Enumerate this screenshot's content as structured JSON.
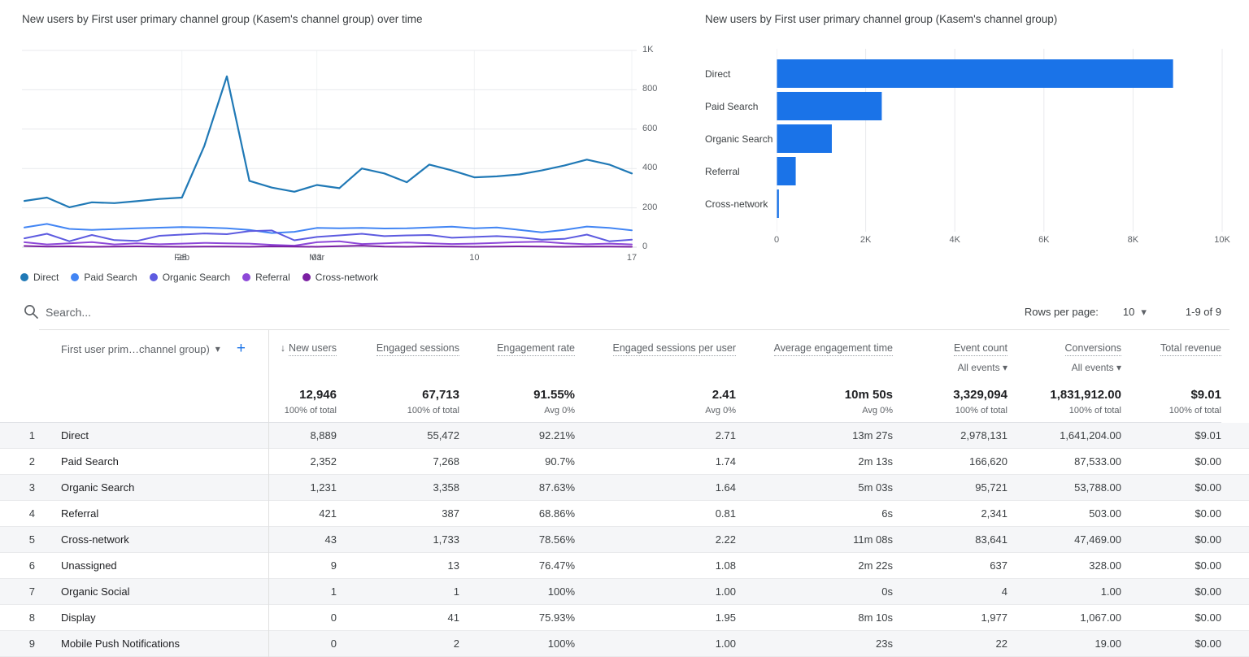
{
  "icons": {
    "search": "magnifier",
    "sort_arrow": "↓",
    "caret": "▾",
    "plus": "+"
  },
  "chart_data": [
    {
      "type": "line",
      "title": "New users by First user primary channel group (Kasem's channel group) over time",
      "ylim": [
        0,
        1000
      ],
      "n_points": 28,
      "grid": true,
      "legend_position": "bottom",
      "y_ticks": [
        {
          "label": "1K",
          "value": 1000
        },
        {
          "label": "800",
          "value": 800
        },
        {
          "label": "600",
          "value": 600
        },
        {
          "label": "400",
          "value": 400
        },
        {
          "label": "200",
          "value": 200
        },
        {
          "label": "0",
          "value": 0
        }
      ],
      "x_ticks": [
        {
          "label": "25",
          "sublabel": "Feb",
          "index": 7
        },
        {
          "label": "03",
          "sublabel": "Mar",
          "index": 13
        },
        {
          "label": "10",
          "sublabel": "",
          "index": 20
        },
        {
          "label": "17",
          "sublabel": "",
          "index": 27
        }
      ],
      "series": [
        {
          "name": "Direct",
          "color": "#2079b6",
          "values": [
            235,
            252,
            203,
            228,
            224,
            234,
            245,
            252,
            515,
            868,
            337,
            303,
            282,
            316,
            300,
            400,
            375,
            330,
            420,
            390,
            355,
            360,
            370,
            390,
            415,
            445,
            420,
            375
          ]
        },
        {
          "name": "Paid Search",
          "color": "#4285f4",
          "values": [
            100,
            118,
            93,
            88,
            92,
            96,
            99,
            102,
            100,
            96,
            88,
            72,
            78,
            98,
            96,
            98,
            95,
            96,
            100,
            104,
            96,
            100,
            88,
            75,
            88,
            105,
            98,
            86
          ]
        },
        {
          "name": "Organic Search",
          "color": "#5d5be0",
          "values": [
            45,
            68,
            30,
            62,
            36,
            32,
            58,
            64,
            70,
            66,
            82,
            85,
            35,
            52,
            60,
            68,
            56,
            60,
            62,
            48,
            52,
            56,
            50,
            38,
            42,
            64,
            30,
            38
          ]
        },
        {
          "name": "Referral",
          "color": "#8d48d8",
          "values": [
            25,
            14,
            20,
            26,
            14,
            20,
            15,
            18,
            22,
            20,
            18,
            12,
            8,
            25,
            30,
            16,
            20,
            24,
            20,
            16,
            18,
            22,
            26,
            28,
            20,
            15,
            18,
            14
          ]
        },
        {
          "name": "Cross-network",
          "color": "#7b1fa2",
          "values": [
            6,
            3,
            4,
            2,
            3,
            4,
            3,
            2,
            3,
            3,
            2,
            4,
            3,
            2,
            5,
            8,
            3,
            2,
            4,
            3,
            2,
            3,
            4,
            3,
            2,
            3,
            3,
            2
          ]
        }
      ]
    },
    {
      "type": "bar",
      "orientation": "horizontal",
      "title": "New users by First user primary channel group (Kasem's channel group)",
      "categories": [
        "Direct",
        "Paid Search",
        "Organic Search",
        "Referral",
        "Cross-network"
      ],
      "values": [
        8889,
        2352,
        1231,
        421,
        43
      ],
      "bar_color": "#1a73e8",
      "xlim": [
        0,
        10000
      ],
      "grid": true,
      "x_ticks": [
        {
          "label": "0",
          "value": 0
        },
        {
          "label": "2K",
          "value": 2000
        },
        {
          "label": "4K",
          "value": 4000
        },
        {
          "label": "6K",
          "value": 6000
        },
        {
          "label": "8K",
          "value": 8000
        },
        {
          "label": "10K",
          "value": 10000
        }
      ]
    }
  ],
  "toolbar": {
    "search_placeholder": "Search...",
    "rows_per_page_label": "Rows per page:",
    "rows_per_page_value": "10",
    "pagination_label": "1-9 of 9"
  },
  "table": {
    "dimension_header": "First user prim…channel group)",
    "columns": [
      {
        "label": "New users",
        "sorted": true,
        "sub": ""
      },
      {
        "label": "Engaged sessions",
        "sorted": false,
        "sub": ""
      },
      {
        "label": "Engagement rate",
        "sorted": false,
        "sub": ""
      },
      {
        "label": "Engaged sessions per user",
        "sorted": false,
        "sub": ""
      },
      {
        "label": "Average engagement time",
        "sorted": false,
        "sub": ""
      },
      {
        "label": "Event count",
        "sorted": false,
        "sub": "All events"
      },
      {
        "label": "Conversions",
        "sorted": false,
        "sub": "All events"
      },
      {
        "label": "Total revenue",
        "sorted": false,
        "sub": ""
      }
    ],
    "totals": {
      "values": [
        "12,946",
        "67,713",
        "91.55%",
        "2.41",
        "10m 50s",
        "3,329,094",
        "1,831,912.00",
        "$9.01"
      ],
      "subs": [
        "100% of total",
        "100% of total",
        "Avg 0%",
        "Avg 0%",
        "Avg 0%",
        "100% of total",
        "100% of total",
        "100% of total"
      ]
    },
    "rows": [
      {
        "index": "1",
        "channel": "Direct",
        "values": [
          "8,889",
          "55,472",
          "92.21%",
          "2.71",
          "13m 27s",
          "2,978,131",
          "1,641,204.00",
          "$9.01"
        ]
      },
      {
        "index": "2",
        "channel": "Paid Search",
        "values": [
          "2,352",
          "7,268",
          "90.7%",
          "1.74",
          "2m 13s",
          "166,620",
          "87,533.00",
          "$0.00"
        ]
      },
      {
        "index": "3",
        "channel": "Organic Search",
        "values": [
          "1,231",
          "3,358",
          "87.63%",
          "1.64",
          "5m 03s",
          "95,721",
          "53,788.00",
          "$0.00"
        ]
      },
      {
        "index": "4",
        "channel": "Referral",
        "values": [
          "421",
          "387",
          "68.86%",
          "0.81",
          "6s",
          "2,341",
          "503.00",
          "$0.00"
        ]
      },
      {
        "index": "5",
        "channel": "Cross-network",
        "values": [
          "43",
          "1,733",
          "78.56%",
          "2.22",
          "11m 08s",
          "83,641",
          "47,469.00",
          "$0.00"
        ]
      },
      {
        "index": "6",
        "channel": "Unassigned",
        "values": [
          "9",
          "13",
          "76.47%",
          "1.08",
          "2m 22s",
          "637",
          "328.00",
          "$0.00"
        ]
      },
      {
        "index": "7",
        "channel": "Organic Social",
        "values": [
          "1",
          "1",
          "100%",
          "1.00",
          "0s",
          "4",
          "1.00",
          "$0.00"
        ]
      },
      {
        "index": "8",
        "channel": "Display",
        "values": [
          "0",
          "41",
          "75.93%",
          "1.95",
          "8m 10s",
          "1,977",
          "1,067.00",
          "$0.00"
        ]
      },
      {
        "index": "9",
        "channel": "Mobile Push Notifications",
        "values": [
          "0",
          "2",
          "100%",
          "1.00",
          "23s",
          "22",
          "19.00",
          "$0.00"
        ]
      }
    ]
  }
}
